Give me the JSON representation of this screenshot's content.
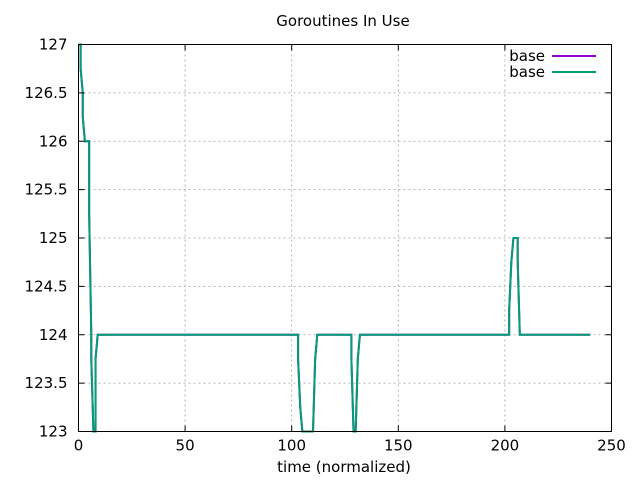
{
  "chart_data": {
    "type": "line",
    "title": "Goroutines In Use",
    "xlabel": "time (normalized)",
    "ylabel": "",
    "xlim": [
      0,
      250
    ],
    "ylim": [
      123,
      127
    ],
    "xticks": [
      0,
      50,
      100,
      150,
      200,
      250
    ],
    "xtick_labels": [
      "0",
      "50",
      "100",
      "150",
      "200",
      "250"
    ],
    "yticks": [
      123,
      123.5,
      124,
      124.5,
      125,
      125.5,
      126,
      126.5,
      127
    ],
    "ytick_labels": [
      "123",
      "123.5",
      "124",
      "124.5",
      "125",
      "125.5",
      "126",
      "126.5",
      "127"
    ],
    "grid": true,
    "legend": "top-right",
    "step": true,
    "series": [
      {
        "name": "base",
        "color": "#9400d3",
        "points": [
          [
            0,
            127
          ],
          [
            1,
            127
          ],
          [
            1,
            126.75
          ],
          [
            2,
            126.5
          ],
          [
            2,
            126.25
          ],
          [
            3,
            126
          ],
          [
            5,
            126
          ],
          [
            5,
            125.25
          ],
          [
            6,
            124
          ],
          [
            6,
            123.75
          ],
          [
            7,
            123
          ],
          [
            8,
            123
          ],
          [
            8,
            123.25
          ],
          [
            8,
            123.75
          ],
          [
            9,
            124
          ],
          [
            103,
            124
          ],
          [
            103,
            123.75
          ],
          [
            104,
            123.25
          ],
          [
            105,
            123
          ],
          [
            110,
            123
          ],
          [
            111,
            123.75
          ],
          [
            112,
            124
          ],
          [
            128,
            124
          ],
          [
            128,
            123.75
          ],
          [
            129,
            123
          ],
          [
            130,
            123
          ],
          [
            131,
            123.75
          ],
          [
            132,
            124
          ],
          [
            202,
            124
          ],
          [
            202,
            124.25
          ],
          [
            203,
            124.75
          ],
          [
            204,
            125
          ],
          [
            206,
            125
          ],
          [
            206,
            124.75
          ],
          [
            207,
            124
          ],
          [
            240,
            124
          ]
        ]
      },
      {
        "name": "base",
        "color": "#009e73",
        "points": [
          [
            0,
            127
          ],
          [
            1,
            127
          ],
          [
            1,
            126.75
          ],
          [
            2,
            126.5
          ],
          [
            2,
            126.25
          ],
          [
            3,
            126
          ],
          [
            5,
            126
          ],
          [
            5,
            125.25
          ],
          [
            6,
            124
          ],
          [
            6,
            123.75
          ],
          [
            7,
            123
          ],
          [
            8,
            123
          ],
          [
            8,
            123.25
          ],
          [
            8,
            123.75
          ],
          [
            9,
            124
          ],
          [
            103,
            124
          ],
          [
            103,
            123.75
          ],
          [
            104,
            123.25
          ],
          [
            105,
            123
          ],
          [
            110,
            123
          ],
          [
            111,
            123.75
          ],
          [
            112,
            124
          ],
          [
            128,
            124
          ],
          [
            128,
            123.75
          ],
          [
            129,
            123
          ],
          [
            130,
            123
          ],
          [
            131,
            123.75
          ],
          [
            132,
            124
          ],
          [
            202,
            124
          ],
          [
            202,
            124.25
          ],
          [
            203,
            124.75
          ],
          [
            204,
            125
          ],
          [
            206,
            125
          ],
          [
            206,
            124.75
          ],
          [
            207,
            124
          ],
          [
            240,
            124
          ]
        ]
      }
    ]
  }
}
